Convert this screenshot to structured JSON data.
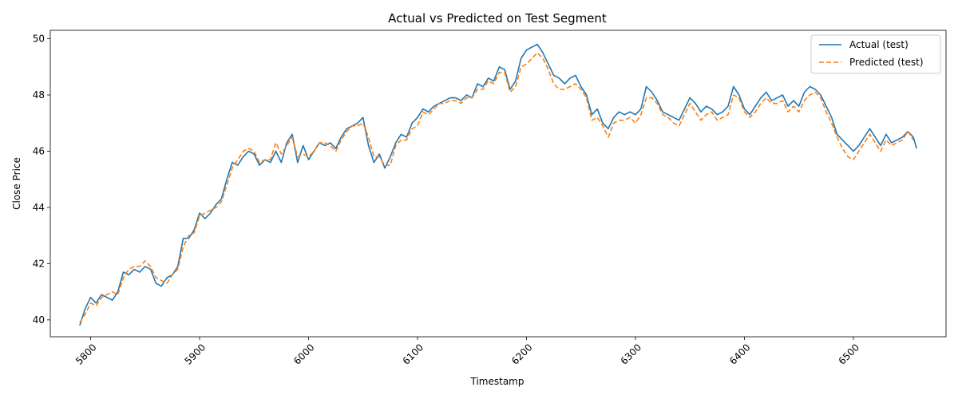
{
  "chart_data": {
    "type": "line",
    "title": "Actual vs Predicted on Test Segment",
    "xlabel": "Timestamp",
    "ylabel": "Close Price",
    "xlim": [
      5763,
      5784
    ],
    "ylim": [
      39.4,
      50.3
    ],
    "xticks": [
      5800,
      5900,
      6000,
      6100,
      6200,
      6300,
      6400,
      6500
    ],
    "yticks": [
      40,
      42,
      44,
      46,
      48,
      50
    ],
    "grid": false,
    "legend_position": "top-right",
    "series": [
      {
        "name": "Actual (test)",
        "color": "#1f77b4",
        "style": "solid",
        "x": [
          5790,
          5795,
          5800,
          5805,
          5810,
          5815,
          5820,
          5825,
          5830,
          5835,
          5840,
          5845,
          5850,
          5855,
          5860,
          5865,
          5870,
          5875,
          5880,
          5885,
          5890,
          5895,
          5900,
          5905,
          5910,
          5915,
          5920,
          5925,
          5930,
          5935,
          5940,
          5945,
          5950,
          5955,
          5960,
          5965,
          5970,
          5975,
          5980,
          5985,
          5990,
          5995,
          6000,
          6005,
          6010,
          6015,
          6020,
          6025,
          6030,
          6035,
          6040,
          6045,
          6050,
          6055,
          6060,
          6065,
          6070,
          6075,
          6080,
          6085,
          6090,
          6095,
          6100,
          6105,
          6110,
          6115,
          6120,
          6125,
          6130,
          6135,
          6140,
          6145,
          6150,
          6155,
          6160,
          6165,
          6170,
          6175,
          6180,
          6185,
          6190,
          6195,
          6200,
          6205,
          6210,
          6215,
          6220,
          6225,
          6230,
          6235,
          6240,
          6245,
          6250,
          6255,
          6260,
          6265,
          6270,
          6275,
          6280,
          6285,
          6290,
          6295,
          6300,
          6305,
          6310,
          6315,
          6320,
          6325,
          6330,
          6335,
          6340,
          6345,
          6350,
          6355,
          6360,
          6365,
          6370,
          6375,
          6380,
          6385,
          6390,
          6395,
          6400,
          6405,
          6410,
          6415,
          6420,
          6425,
          6430,
          6435,
          6440,
          6445,
          6450,
          6455,
          6460,
          6465,
          6470,
          6475,
          6480,
          6485,
          6490,
          6495,
          6500,
          6505,
          6510,
          6515,
          6520,
          6525,
          6530,
          6535,
          6540,
          6545,
          6550,
          6555,
          6558
        ],
        "y": [
          39.8,
          40.4,
          40.8,
          40.6,
          40.9,
          40.8,
          40.7,
          41.0,
          41.7,
          41.6,
          41.8,
          41.7,
          41.9,
          41.8,
          41.3,
          41.2,
          41.5,
          41.6,
          41.9,
          42.9,
          42.9,
          43.2,
          43.8,
          43.6,
          43.8,
          44.1,
          44.3,
          45.0,
          45.6,
          45.5,
          45.8,
          46.0,
          45.9,
          45.5,
          45.7,
          45.6,
          46.0,
          45.6,
          46.3,
          46.6,
          45.6,
          46.2,
          45.7,
          46.0,
          46.3,
          46.2,
          46.3,
          46.1,
          46.5,
          46.8,
          46.9,
          47.0,
          47.2,
          46.2,
          45.6,
          45.9,
          45.4,
          45.8,
          46.3,
          46.6,
          46.5,
          47.0,
          47.2,
          47.5,
          47.4,
          47.6,
          47.7,
          47.8,
          47.9,
          47.9,
          47.8,
          48.0,
          47.9,
          48.4,
          48.3,
          48.6,
          48.5,
          49.0,
          48.9,
          48.2,
          48.5,
          49.3,
          49.6,
          49.7,
          49.8,
          49.5,
          49.1,
          48.7,
          48.6,
          48.4,
          48.6,
          48.7,
          48.3,
          48.0,
          47.3,
          47.5,
          47.0,
          46.8,
          47.2,
          47.4,
          47.3,
          47.4,
          47.3,
          47.5,
          48.3,
          48.1,
          47.8,
          47.4,
          47.3,
          47.2,
          47.1,
          47.5,
          47.9,
          47.7,
          47.4,
          47.6,
          47.5,
          47.3,
          47.4,
          47.6,
          48.3,
          48.0,
          47.5,
          47.3,
          47.6,
          47.9,
          48.1,
          47.8,
          47.9,
          48.0,
          47.6,
          47.8,
          47.6,
          48.1,
          48.3,
          48.2,
          48.0,
          47.6,
          47.2,
          46.6,
          46.4,
          46.2,
          46.0,
          46.2,
          46.5,
          46.8,
          46.5,
          46.2,
          46.6,
          46.3,
          46.4,
          46.5,
          46.7,
          46.5,
          46.1
        ]
      },
      {
        "name": "Predicted (test)",
        "color": "#ff7f0e",
        "style": "dashed",
        "x": [
          5790,
          5795,
          5800,
          5805,
          5810,
          5815,
          5820,
          5825,
          5830,
          5835,
          5840,
          5845,
          5850,
          5855,
          5860,
          5865,
          5870,
          5875,
          5880,
          5885,
          5890,
          5895,
          5900,
          5905,
          5910,
          5915,
          5920,
          5925,
          5930,
          5935,
          5940,
          5945,
          5950,
          5955,
          5960,
          5965,
          5970,
          5975,
          5980,
          5985,
          5990,
          5995,
          6000,
          6005,
          6010,
          6015,
          6020,
          6025,
          6030,
          6035,
          6040,
          6045,
          6050,
          6055,
          6060,
          6065,
          6070,
          6075,
          6080,
          6085,
          6090,
          6095,
          6100,
          6105,
          6110,
          6115,
          6120,
          6125,
          6130,
          6135,
          6140,
          6145,
          6150,
          6155,
          6160,
          6165,
          6170,
          6175,
          6180,
          6185,
          6190,
          6195,
          6200,
          6205,
          6210,
          6215,
          6220,
          6225,
          6230,
          6235,
          6240,
          6245,
          6250,
          6255,
          6260,
          6265,
          6270,
          6275,
          6280,
          6285,
          6290,
          6295,
          6300,
          6305,
          6310,
          6315,
          6320,
          6325,
          6330,
          6335,
          6340,
          6345,
          6350,
          6355,
          6360,
          6365,
          6370,
          6375,
          6380,
          6385,
          6390,
          6395,
          6400,
          6405,
          6410,
          6415,
          6420,
          6425,
          6430,
          6435,
          6440,
          6445,
          6450,
          6455,
          6460,
          6465,
          6470,
          6475,
          6480,
          6485,
          6490,
          6495,
          6500,
          6505,
          6510,
          6515,
          6520,
          6525,
          6530,
          6535,
          6540,
          6545,
          6550,
          6555
        ],
        "y": [
          39.9,
          40.2,
          40.6,
          40.5,
          40.8,
          40.9,
          41.0,
          40.9,
          41.5,
          41.8,
          41.9,
          41.9,
          42.1,
          41.9,
          41.5,
          41.4,
          41.3,
          41.6,
          41.8,
          42.6,
          43.0,
          43.1,
          43.7,
          43.8,
          43.9,
          44.0,
          44.2,
          44.8,
          45.4,
          45.7,
          46.0,
          46.1,
          46.0,
          45.6,
          45.7,
          45.7,
          46.3,
          45.9,
          46.2,
          46.5,
          45.8,
          45.9,
          45.8,
          46.0,
          46.3,
          46.3,
          46.2,
          46.0,
          46.4,
          46.7,
          46.9,
          46.9,
          47.0,
          46.5,
          45.8,
          45.8,
          45.5,
          45.5,
          46.2,
          46.4,
          46.4,
          46.8,
          46.9,
          47.4,
          47.3,
          47.5,
          47.7,
          47.7,
          47.8,
          47.8,
          47.7,
          47.9,
          47.9,
          48.2,
          48.2,
          48.5,
          48.4,
          48.8,
          48.8,
          48.1,
          48.3,
          49.0,
          49.1,
          49.3,
          49.5,
          49.3,
          48.9,
          48.4,
          48.2,
          48.2,
          48.3,
          48.4,
          48.2,
          47.9,
          47.1,
          47.2,
          46.9,
          46.5,
          47.0,
          47.1,
          47.1,
          47.2,
          47.0,
          47.3,
          47.9,
          47.9,
          47.7,
          47.3,
          47.2,
          47.0,
          46.9,
          47.3,
          47.7,
          47.4,
          47.1,
          47.3,
          47.4,
          47.1,
          47.2,
          47.3,
          48.0,
          47.9,
          47.4,
          47.2,
          47.4,
          47.7,
          47.9,
          47.7,
          47.7,
          47.8,
          47.4,
          47.6,
          47.4,
          47.8,
          48.0,
          48.1,
          47.9,
          47.4,
          47.0,
          46.5,
          46.1,
          45.8,
          45.7,
          46.0,
          46.3,
          46.6,
          46.3,
          46.0,
          46.4,
          46.2,
          46.3,
          46.4,
          46.7,
          46.4
        ]
      }
    ]
  }
}
